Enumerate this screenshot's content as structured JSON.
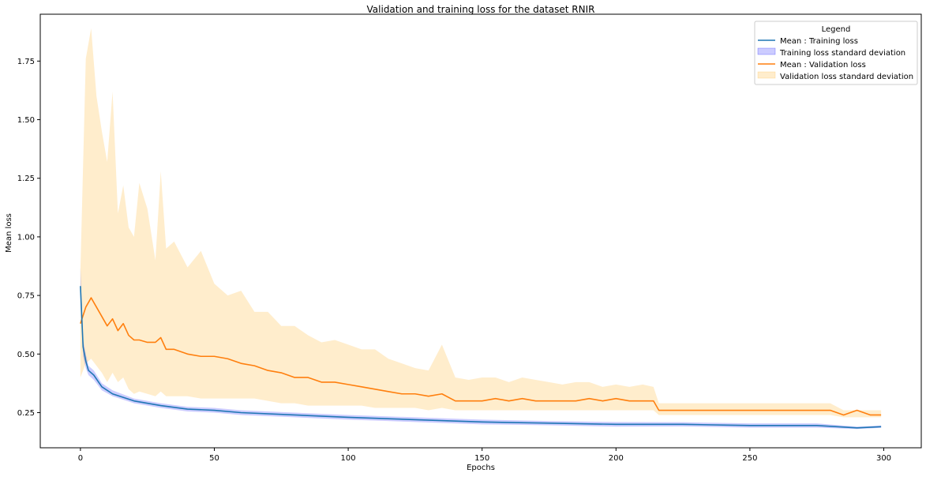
{
  "chart_data": {
    "type": "line",
    "title": "Validation and training loss for the dataset RNIR",
    "xlabel": "Epochs",
    "ylabel": "Mean loss",
    "xlim": [
      -15,
      314
    ],
    "ylim": [
      0.1,
      1.95
    ],
    "x_ticks": [
      0,
      50,
      100,
      150,
      200,
      250,
      300
    ],
    "y_ticks": [
      0.25,
      0.5,
      0.75,
      1.0,
      1.25,
      1.5,
      1.75
    ],
    "y_tick_labels": [
      "0.25",
      "0.50",
      "0.75",
      "1.00",
      "1.25",
      "1.50",
      "1.75"
    ],
    "grid": false,
    "legend": {
      "title": "Legend",
      "placement": "top-right",
      "entries": [
        {
          "label": "Mean : Training loss",
          "kind": "line",
          "color": "#1f77b4"
        },
        {
          "label": "Training loss standard deviation",
          "kind": "band",
          "color": "#0000ff"
        },
        {
          "label": "Mean : Validation loss",
          "kind": "line",
          "color": "#ff7f0e"
        },
        {
          "label": "Validation loss standard deviation",
          "kind": "band",
          "color": "#ffa500"
        }
      ]
    },
    "series": [
      {
        "name": "Mean : Training loss",
        "color": "#1f77b4",
        "x": [
          0,
          1,
          2,
          3,
          5,
          8,
          12,
          20,
          30,
          40,
          50,
          60,
          80,
          100,
          125,
          150,
          175,
          200,
          225,
          250,
          275,
          290,
          299
        ],
        "y": [
          0.79,
          0.53,
          0.47,
          0.43,
          0.41,
          0.36,
          0.33,
          0.3,
          0.28,
          0.265,
          0.26,
          0.25,
          0.24,
          0.23,
          0.22,
          0.21,
          0.205,
          0.2,
          0.2,
          0.195,
          0.195,
          0.185,
          0.19
        ]
      },
      {
        "name": "Training loss standard deviation",
        "color": "#0000ff",
        "x": [
          0,
          1,
          2,
          3,
          5,
          8,
          12,
          20,
          30,
          40,
          50,
          60,
          80,
          100,
          125,
          150,
          175,
          200,
          225,
          250,
          275,
          290,
          299
        ],
        "lower": [
          0.72,
          0.49,
          0.44,
          0.41,
          0.39,
          0.345,
          0.32,
          0.29,
          0.27,
          0.255,
          0.25,
          0.24,
          0.23,
          0.22,
          0.21,
          0.2,
          0.196,
          0.19,
          0.191,
          0.186,
          0.186,
          0.18,
          0.185
        ],
        "upper": [
          0.87,
          0.56,
          0.5,
          0.45,
          0.43,
          0.375,
          0.345,
          0.31,
          0.29,
          0.275,
          0.27,
          0.26,
          0.25,
          0.24,
          0.23,
          0.22,
          0.214,
          0.21,
          0.209,
          0.204,
          0.204,
          0.19,
          0.195
        ]
      },
      {
        "name": "Mean : Validation loss",
        "color": "#ff7f0e",
        "x": [
          0,
          2,
          4,
          6,
          8,
          10,
          12,
          14,
          16,
          18,
          20,
          22,
          25,
          28,
          30,
          32,
          35,
          40,
          45,
          50,
          55,
          60,
          65,
          70,
          75,
          80,
          85,
          90,
          95,
          100,
          105,
          110,
          115,
          120,
          125,
          130,
          135,
          140,
          145,
          150,
          155,
          160,
          165,
          170,
          175,
          180,
          185,
          190,
          195,
          200,
          205,
          210,
          214,
          216,
          220,
          230,
          240,
          250,
          260,
          270,
          280,
          285,
          290,
          295,
          299
        ],
        "y": [
          0.63,
          0.7,
          0.74,
          0.7,
          0.66,
          0.62,
          0.65,
          0.6,
          0.63,
          0.58,
          0.56,
          0.56,
          0.55,
          0.55,
          0.57,
          0.52,
          0.52,
          0.5,
          0.49,
          0.49,
          0.48,
          0.46,
          0.45,
          0.43,
          0.42,
          0.4,
          0.4,
          0.38,
          0.38,
          0.37,
          0.36,
          0.35,
          0.34,
          0.33,
          0.33,
          0.32,
          0.33,
          0.3,
          0.3,
          0.3,
          0.31,
          0.3,
          0.31,
          0.3,
          0.3,
          0.3,
          0.3,
          0.31,
          0.3,
          0.31,
          0.3,
          0.3,
          0.3,
          0.26,
          0.26,
          0.26,
          0.26,
          0.26,
          0.26,
          0.26,
          0.26,
          0.24,
          0.26,
          0.24,
          0.24
        ]
      },
      {
        "name": "Validation loss standard deviation",
        "color": "#ffa500",
        "x": [
          0,
          2,
          4,
          6,
          8,
          10,
          12,
          14,
          16,
          18,
          20,
          22,
          25,
          28,
          30,
          32,
          35,
          40,
          45,
          50,
          55,
          60,
          65,
          70,
          75,
          80,
          85,
          90,
          95,
          100,
          105,
          110,
          115,
          120,
          125,
          130,
          135,
          140,
          145,
          150,
          155,
          160,
          165,
          170,
          175,
          180,
          185,
          190,
          195,
          200,
          205,
          210,
          214,
          216,
          220,
          230,
          240,
          250,
          260,
          270,
          280,
          285,
          290,
          295,
          299
        ],
        "lower": [
          0.4,
          0.46,
          0.48,
          0.45,
          0.42,
          0.38,
          0.42,
          0.38,
          0.4,
          0.35,
          0.33,
          0.34,
          0.33,
          0.32,
          0.34,
          0.32,
          0.32,
          0.32,
          0.31,
          0.31,
          0.31,
          0.31,
          0.31,
          0.3,
          0.29,
          0.29,
          0.28,
          0.28,
          0.28,
          0.28,
          0.28,
          0.27,
          0.27,
          0.27,
          0.27,
          0.26,
          0.27,
          0.26,
          0.26,
          0.26,
          0.26,
          0.26,
          0.26,
          0.26,
          0.26,
          0.26,
          0.26,
          0.26,
          0.26,
          0.26,
          0.26,
          0.26,
          0.26,
          0.24,
          0.24,
          0.24,
          0.24,
          0.24,
          0.24,
          0.24,
          0.24,
          0.23,
          0.23,
          0.23,
          0.23
        ],
        "upper": [
          0.86,
          1.76,
          1.89,
          1.6,
          1.45,
          1.32,
          1.62,
          1.1,
          1.22,
          1.04,
          1.0,
          1.23,
          1.12,
          0.9,
          1.28,
          0.95,
          0.98,
          0.87,
          0.94,
          0.8,
          0.75,
          0.77,
          0.68,
          0.68,
          0.62,
          0.62,
          0.58,
          0.55,
          0.56,
          0.54,
          0.52,
          0.52,
          0.48,
          0.46,
          0.44,
          0.43,
          0.54,
          0.4,
          0.39,
          0.4,
          0.4,
          0.38,
          0.4,
          0.39,
          0.38,
          0.37,
          0.38,
          0.38,
          0.36,
          0.37,
          0.36,
          0.37,
          0.36,
          0.29,
          0.29,
          0.29,
          0.29,
          0.29,
          0.29,
          0.29,
          0.29,
          0.26,
          0.26,
          0.26,
          0.26
        ]
      }
    ]
  }
}
